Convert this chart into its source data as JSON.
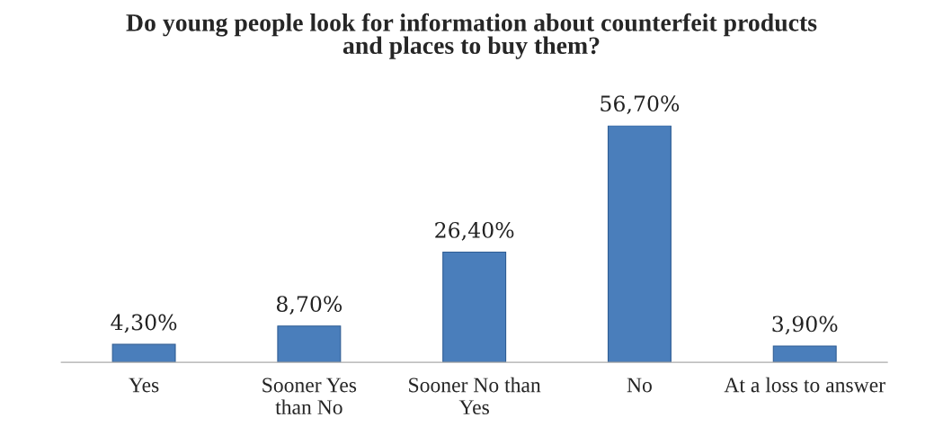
{
  "chart_data": {
    "type": "bar",
    "title": "Do young people look for information about counterfeit products\nand places to buy them?",
    "categories": [
      "Yes",
      "Sooner Yes\nthan No",
      "Sooner No than\nYes",
      "No",
      "At a loss to answer"
    ],
    "values": [
      4.3,
      8.7,
      26.4,
      56.7,
      3.9
    ],
    "value_labels": [
      "4,30%",
      "8,70%",
      "26,40%",
      "56,70%",
      "3,90%"
    ],
    "color": "#4a7ebb",
    "grid": false
  }
}
